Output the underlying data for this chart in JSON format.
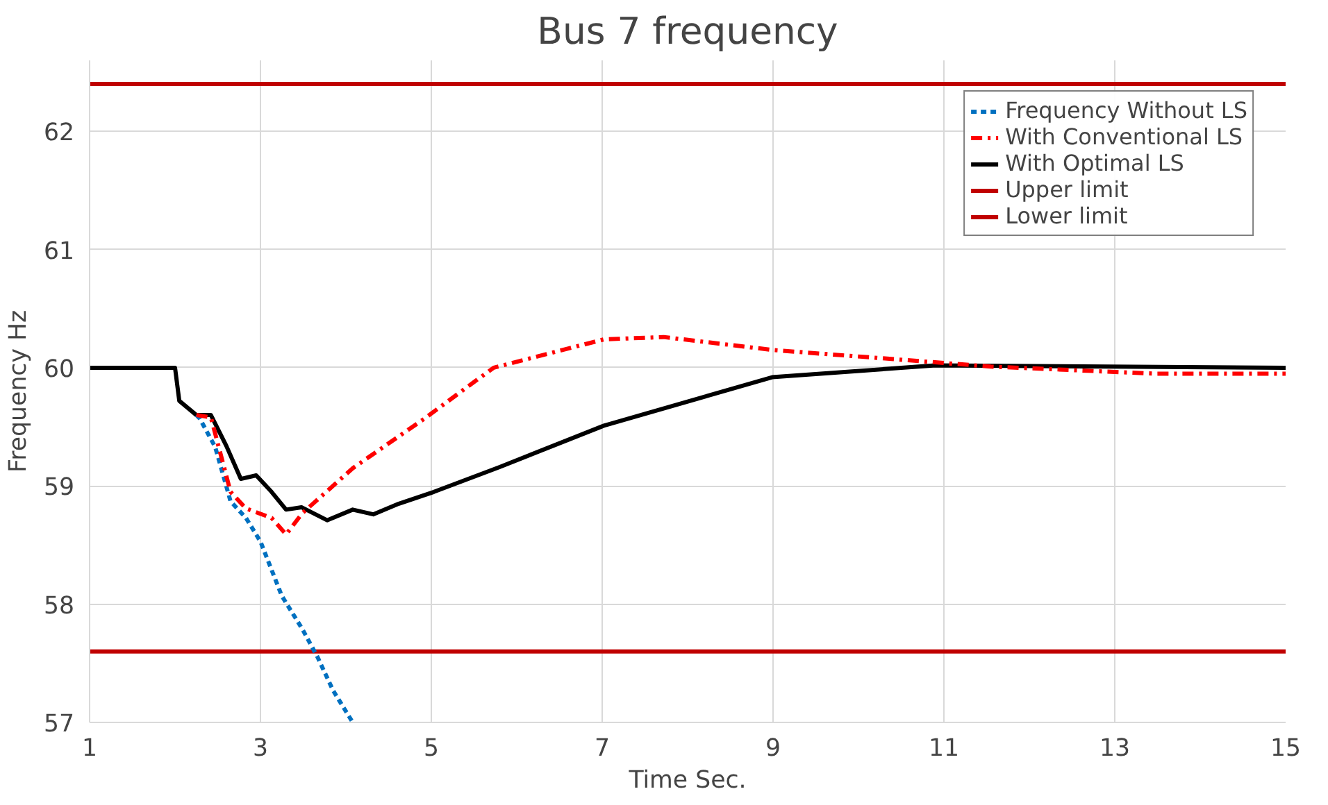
{
  "chart_data": {
    "type": "line",
    "title": "Bus 7 frequency",
    "xlabel": "Time Sec.",
    "ylabel": "Frequency Hz",
    "xlim": [
      1,
      15
    ],
    "ylim": [
      57,
      62.6
    ],
    "xticks": [
      1,
      3,
      5,
      7,
      9,
      11,
      13,
      15
    ],
    "yticks": [
      57,
      58,
      59,
      60,
      61,
      62
    ],
    "grid": true,
    "legend": "top right",
    "marker": "none",
    "series": [
      {
        "name": "Frequency Without LS",
        "color": "#0070c0",
        "line_style": "dashed",
        "x": [
          2.25,
          2.29,
          2.47,
          2.65,
          2.83,
          3.0,
          3.25,
          3.49,
          3.67,
          3.85,
          4.08
        ],
        "values": [
          59.6,
          59.57,
          59.33,
          58.87,
          58.73,
          58.53,
          58.07,
          57.79,
          57.55,
          57.27,
          57.0
        ]
      },
      {
        "name": "With Conventional LS",
        "color": "#ff0000",
        "line_style": "dashdot",
        "x": [
          2.25,
          2.42,
          2.65,
          2.83,
          3.13,
          3.3,
          3.49,
          4.08,
          4.92,
          5.52,
          5.73,
          7.02,
          7.72,
          9.0,
          10.28,
          11.55,
          13.47,
          15
        ],
        "values": [
          59.6,
          59.58,
          58.95,
          58.81,
          58.73,
          58.59,
          58.77,
          59.15,
          59.57,
          59.89,
          60.0,
          60.24,
          60.26,
          60.15,
          60.08,
          60.01,
          59.95,
          59.95
        ]
      },
      {
        "name": "With Optimal LS",
        "color": "#000000",
        "line_style": "solid",
        "x": [
          1,
          2.0,
          2.05,
          2.25,
          2.42,
          2.6,
          2.77,
          2.95,
          3.13,
          3.3,
          3.48,
          3.78,
          4.08,
          4.32,
          4.62,
          5.03,
          5.8,
          7.02,
          8.99,
          10.9,
          15
        ],
        "values": [
          60,
          60,
          59.72,
          59.6,
          59.6,
          59.34,
          59.06,
          59.09,
          58.95,
          58.8,
          58.82,
          58.71,
          58.8,
          58.76,
          58.85,
          58.95,
          59.16,
          59.51,
          59.92,
          60.02,
          60.0
        ]
      },
      {
        "name": "Upper limit",
        "color": "#c00000",
        "line_style": "solid",
        "x": [
          1,
          15
        ],
        "values": [
          62.4,
          62.4
        ]
      },
      {
        "name": "Lower limit",
        "color": "#c00000",
        "line_style": "solid",
        "x": [
          1,
          15
        ],
        "values": [
          57.6,
          57.6
        ]
      }
    ]
  }
}
